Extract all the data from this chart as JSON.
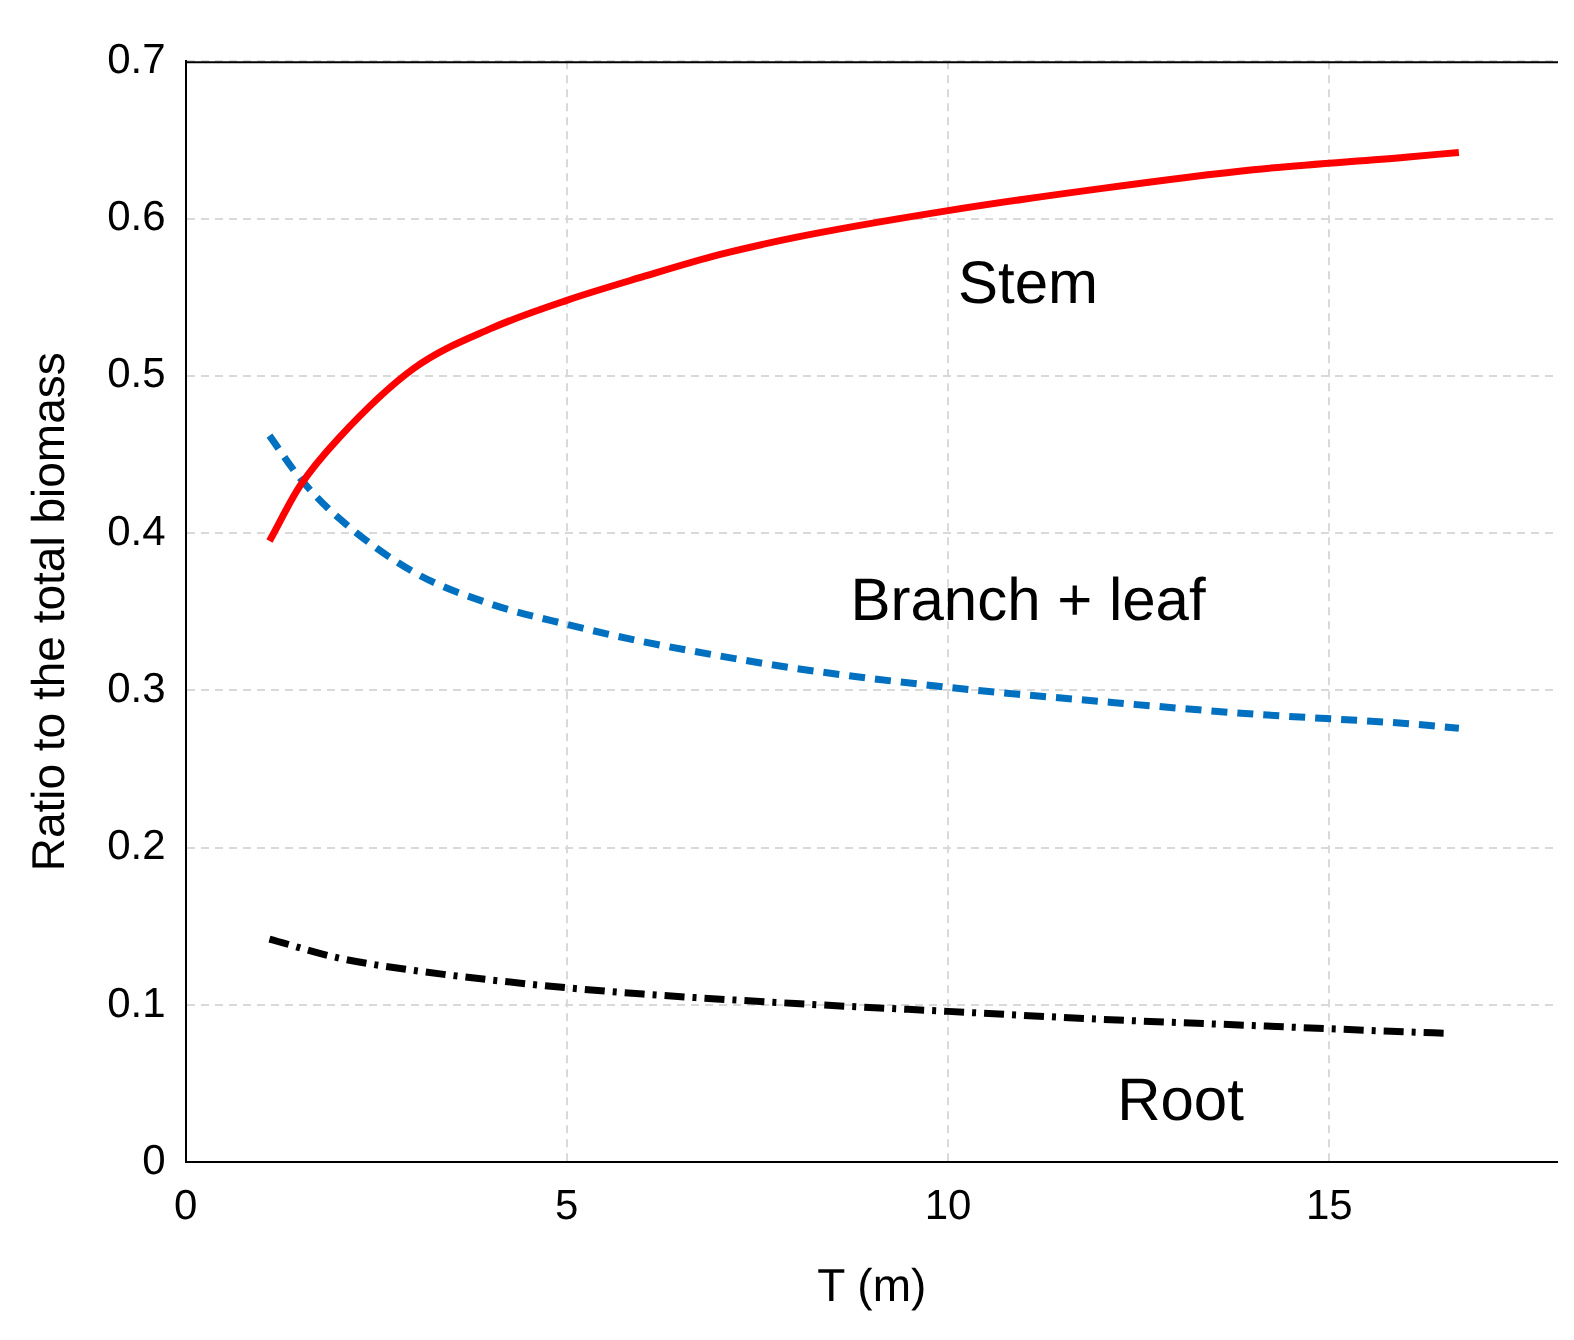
{
  "chart_data": {
    "type": "line",
    "xlabel": "T (m)",
    "ylabel": "Ratio to the total biomass",
    "xlim": [
      0,
      18
    ],
    "xticks": [
      0,
      5,
      10,
      15
    ],
    "ylim": [
      0,
      0.7
    ],
    "yticks": [
      0,
      0.1,
      0.2,
      0.3,
      0.4,
      0.5,
      0.6,
      0.7
    ],
    "grid": true,
    "legend": false,
    "marker": "none",
    "series": [
      {
        "name": "Stem",
        "color": "#ff0000",
        "line_style": "solid",
        "x": [
          1.1,
          1.5,
          2,
          3,
          4,
          5,
          6,
          7,
          8,
          10,
          12,
          14,
          16,
          16.7
        ],
        "values": [
          0.395,
          0.43,
          0.46,
          0.505,
          0.53,
          0.548,
          0.563,
          0.577,
          0.588,
          0.605,
          0.619,
          0.631,
          0.639,
          0.642
        ]
      },
      {
        "name": "Branch + leaf",
        "color": "#0070c0",
        "line_style": "dashed",
        "x": [
          1.1,
          1.5,
          2,
          3,
          4,
          5,
          6,
          7,
          8,
          10,
          12,
          14,
          16,
          16.7
        ],
        "values": [
          0.462,
          0.435,
          0.41,
          0.375,
          0.355,
          0.342,
          0.331,
          0.322,
          0.314,
          0.302,
          0.293,
          0.285,
          0.279,
          0.276
        ]
      },
      {
        "name": "Root",
        "color": "#000000",
        "line_style": "dashdot",
        "x": [
          1.1,
          2,
          3,
          4,
          5,
          6,
          8,
          10,
          12,
          14,
          16,
          16.6
        ],
        "values": [
          0.142,
          0.13,
          0.122,
          0.116,
          0.111,
          0.107,
          0.101,
          0.096,
          0.091,
          0.087,
          0.083,
          0.082
        ]
      }
    ]
  }
}
